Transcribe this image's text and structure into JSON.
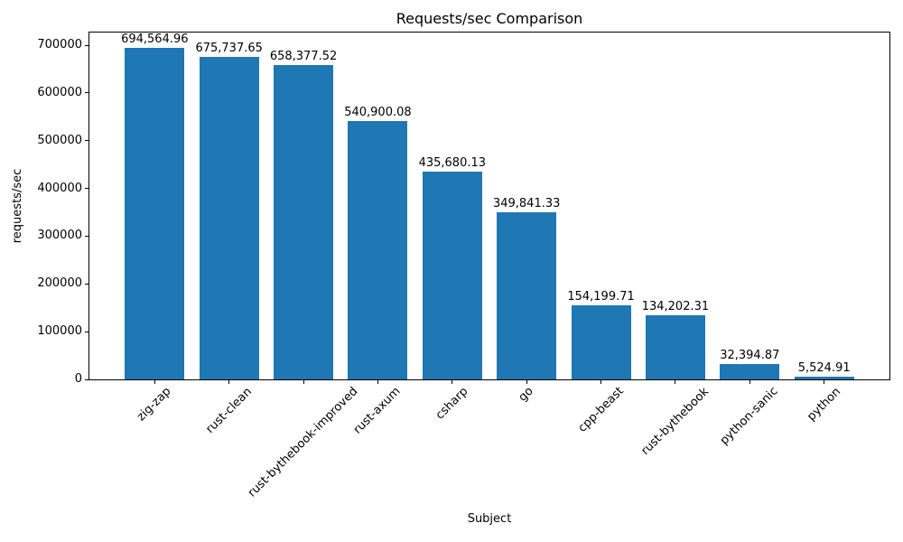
{
  "chart_data": {
    "type": "bar",
    "title": "Requests/sec Comparison",
    "xlabel": "Subject",
    "ylabel": "requests/sec",
    "categories": [
      "zig-zap",
      "rust-clean",
      "rust-bythebook-improved",
      "rust-axum",
      "csharp",
      "go",
      "cpp-beast",
      "rust-bythebook",
      "python-sanic",
      "python"
    ],
    "values": [
      694564.96,
      675737.65,
      658377.52,
      540900.08,
      435680.13,
      349841.33,
      154199.71,
      134202.31,
      32394.87,
      5524.91
    ],
    "bar_labels": [
      "694,564.96",
      "675,737.65",
      "658,377.52",
      "540,900.08",
      "435,680.13",
      "349,841.33",
      "154,199.71",
      "134,202.31",
      "32,394.87",
      "5,524.91"
    ],
    "yticks": [
      0,
      100000,
      200000,
      300000,
      400000,
      500000,
      600000,
      700000
    ],
    "ylim": [
      0,
      728400
    ],
    "grid": false,
    "legend": false,
    "bar_color": "#1f77b4",
    "background_color": "#ffffff",
    "text_color": "#000000",
    "spine_color": "#000000"
  }
}
